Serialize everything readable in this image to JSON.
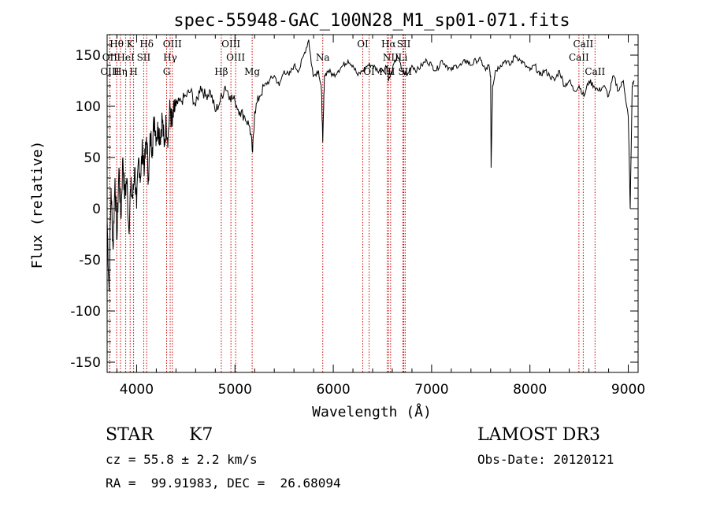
{
  "chart_data": {
    "type": "line",
    "title": "spec-55948-GAC_100N28_M1_sp01-071.fits",
    "xlabel": "Wavelength (Å)",
    "ylabel": "Flux (relative)",
    "xlim": [
      3700,
      9100
    ],
    "ylim": [
      -160,
      170
    ],
    "xticks": [
      4000,
      5000,
      6000,
      7000,
      8000,
      9000
    ],
    "yticks": [
      -150,
      -100,
      -50,
      0,
      50,
      100,
      150
    ],
    "series": [
      {
        "name": "flux",
        "x": [
          3700,
          3720,
          3740,
          3760,
          3780,
          3800,
          3820,
          3840,
          3860,
          3880,
          3900,
          3920,
          3940,
          3960,
          3980,
          4000,
          4020,
          4040,
          4060,
          4080,
          4100,
          4120,
          4140,
          4160,
          4180,
          4200,
          4220,
          4240,
          4260,
          4280,
          4300,
          4320,
          4340,
          4360,
          4380,
          4400,
          4450,
          4500,
          4550,
          4600,
          4650,
          4700,
          4750,
          4800,
          4850,
          4900,
          4950,
          5000,
          5050,
          5100,
          5150,
          5180,
          5200,
          5250,
          5300,
          5350,
          5400,
          5450,
          5500,
          5550,
          5600,
          5650,
          5700,
          5750,
          5780,
          5800,
          5850,
          5880,
          5893,
          5910,
          5950,
          6000,
          6050,
          6100,
          6150,
          6200,
          6250,
          6300,
          6350,
          6400,
          6450,
          6500,
          6550,
          6563,
          6600,
          6650,
          6700,
          6750,
          6800,
          6850,
          6900,
          6950,
          7000,
          7050,
          7100,
          7150,
          7200,
          7250,
          7300,
          7350,
          7400,
          7450,
          7500,
          7550,
          7580,
          7600,
          7605,
          7620,
          7650,
          7700,
          7750,
          7800,
          7850,
          7900,
          7950,
          8000,
          8050,
          8100,
          8150,
          8200,
          8250,
          8300,
          8350,
          8400,
          8450,
          8500,
          8550,
          8600,
          8650,
          8700,
          8750,
          8800,
          8850,
          8900,
          8950,
          9000,
          9020,
          9040,
          9060
        ],
        "y": [
          -10,
          -80,
          20,
          -40,
          30,
          -30,
          40,
          -10,
          50,
          10,
          30,
          -20,
          20,
          10,
          40,
          0,
          50,
          30,
          60,
          40,
          70,
          30,
          70,
          60,
          90,
          70,
          80,
          70,
          90,
          60,
          85,
          70,
          100,
          80,
          95,
          100,
          105,
          110,
          115,
          100,
          120,
          110,
          115,
          95,
          105,
          120,
          110,
          105,
          95,
          90,
          80,
          55,
          95,
          110,
          120,
          125,
          130,
          120,
          135,
          130,
          140,
          135,
          150,
          165,
          140,
          130,
          135,
          115,
          65,
          130,
          135,
          130,
          135,
          140,
          145,
          140,
          130,
          135,
          140,
          140,
          135,
          135,
          140,
          125,
          135,
          150,
          135,
          130,
          140,
          135,
          140,
          145,
          140,
          135,
          145,
          140,
          135,
          140,
          140,
          145,
          140,
          145,
          145,
          135,
          140,
          130,
          40,
          120,
          135,
          140,
          145,
          140,
          150,
          145,
          140,
          135,
          140,
          130,
          135,
          130,
          125,
          135,
          120,
          125,
          115,
          120,
          110,
          125,
          120,
          115,
          120,
          110,
          130,
          115,
          125,
          90,
          0,
          120,
          125
        ]
      }
    ],
    "lines": [
      {
        "label": "Hθ",
        "x": 3797,
        "row": 0
      },
      {
        "label": "OII",
        "x": 3727,
        "row": 1
      },
      {
        "label": "OIII",
        "x": 3727,
        "row": 2
      },
      {
        "label": "K",
        "x": 3934,
        "row": 0
      },
      {
        "label": "HeI",
        "x": 3889,
        "row": 1
      },
      {
        "label": "Hη",
        "x": 3835,
        "row": 2
      },
      {
        "label": "Hδ",
        "x": 4102,
        "row": 0
      },
      {
        "label": "SII",
        "x": 4072,
        "row": 1
      },
      {
        "label": "H",
        "x": 3969,
        "row": 2
      },
      {
        "label": "OIII",
        "x": 4363,
        "row": 0
      },
      {
        "label": "Hγ",
        "x": 4341,
        "row": 1
      },
      {
        "label": "G",
        "x": 4305,
        "row": 2
      },
      {
        "label": "OIII",
        "x": 4959,
        "row": 0
      },
      {
        "label": "OIII",
        "x": 5007,
        "row": 1
      },
      {
        "label": "Hβ",
        "x": 4861,
        "row": 2
      },
      {
        "label": "Mg",
        "x": 5175,
        "row": 2
      },
      {
        "label": "Na",
        "x": 5893,
        "row": 1
      },
      {
        "label": "OI",
        "x": 6300,
        "row": 0
      },
      {
        "label": "OI",
        "x": 6364,
        "row": 2
      },
      {
        "label": "Hα",
        "x": 6563,
        "row": 0
      },
      {
        "label": "NII",
        "x": 6583,
        "row": 1
      },
      {
        "label": "NII",
        "x": 6548,
        "row": 2
      },
      {
        "label": "SII",
        "x": 6717,
        "row": 0
      },
      {
        "label": "Li",
        "x": 6708,
        "row": 1
      },
      {
        "label": "SII",
        "x": 6731,
        "row": 2
      },
      {
        "label": "CaII",
        "x": 8542,
        "row": 0
      },
      {
        "label": "CaII",
        "x": 8498,
        "row": 1
      },
      {
        "label": "CaII",
        "x": 8662,
        "row": 2
      }
    ]
  },
  "info": {
    "class": "STAR",
    "subclass": "K7",
    "survey": "LAMOST DR3",
    "cz": "cz = 55.8 ± 2.2 km/s",
    "obs_date": "Obs-Date: 20120121",
    "coords": "RA =  99.91983, DEC =  26.68094"
  },
  "colors": {
    "axis": "#000000",
    "line": "#000000",
    "marker": "#cc0000"
  }
}
